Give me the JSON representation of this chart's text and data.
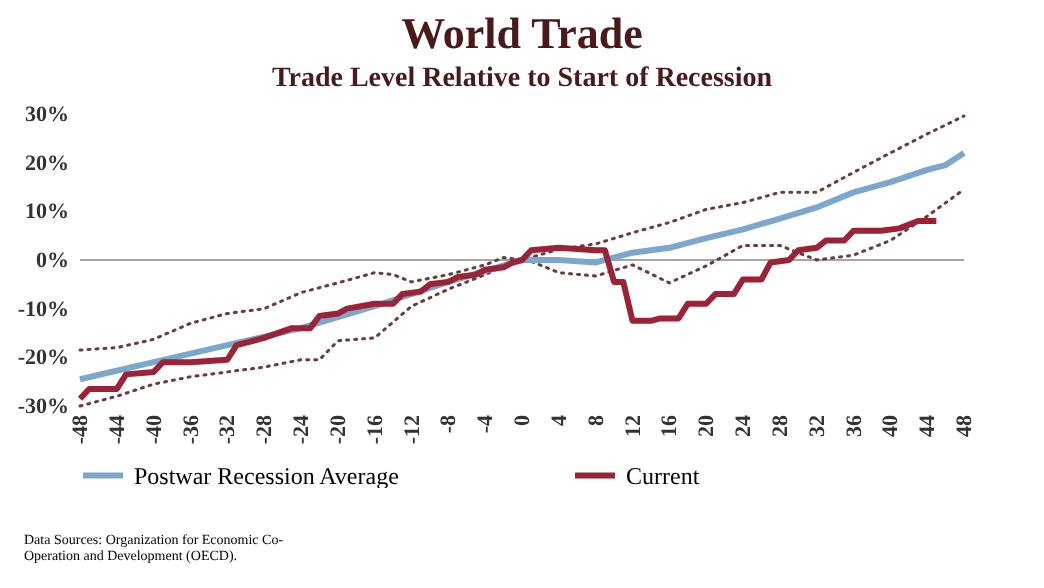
{
  "chart_data": {
    "type": "line",
    "title": "World Trade",
    "subtitle": "Trade Level Relative to Start of Recession",
    "annotations": [
      "Data Sources: Organization for Economic Co-Operation and Development (OECD)."
    ],
    "xlim": [
      -48,
      48
    ],
    "xticks": [
      -48,
      -44,
      -40,
      -36,
      -32,
      -28,
      -24,
      -20,
      -16,
      -12,
      -8,
      -4,
      0,
      4,
      8,
      12,
      16,
      20,
      24,
      28,
      32,
      36,
      40,
      44,
      48
    ],
    "ylim": [
      -30,
      30
    ],
    "yticks": [
      {
        "value": -30,
        "label": "-30%"
      },
      {
        "value": -20,
        "label": "-20%"
      },
      {
        "value": -10,
        "label": "-10%"
      },
      {
        "value": 0,
        "label": "0%"
      },
      {
        "value": 10,
        "label": "10%"
      },
      {
        "value": 20,
        "label": "20%"
      },
      {
        "value": 30,
        "label": "30%"
      }
    ],
    "grid": false,
    "legend": "bottom",
    "marker": "none",
    "ref_lines": [
      {
        "axis": "y",
        "value": 0,
        "color": "#a6a6a6"
      }
    ],
    "series": [
      {
        "color": "#6b3a3a",
        "line_style": "dotted",
        "x": [
          -48,
          -44,
          -40,
          -36,
          -32,
          -28,
          -24,
          -20,
          -16,
          -14,
          -12,
          -8,
          -4,
          -2,
          0,
          4,
          8,
          12,
          16,
          20,
          24,
          28,
          32,
          36,
          40,
          44,
          48
        ],
        "values": [
          -18.5,
          -18,
          -16.3,
          -13,
          -11,
          -10,
          -6.7,
          -4.7,
          -2.6,
          -3,
          -4.5,
          -3,
          -1,
          0.5,
          0,
          2.2,
          3.3,
          5.6,
          7.7,
          10.4,
          11.8,
          13.9,
          13.9,
          18,
          22,
          25.9,
          29.6
        ]
      },
      {
        "color": "#6b3a3a",
        "line_style": "dotted",
        "x": [
          -48,
          -44,
          -40,
          -36,
          -32,
          -28,
          -24,
          -22,
          -20,
          -16,
          -12,
          -8,
          -4,
          0,
          4,
          8,
          12,
          16,
          20,
          24,
          28,
          32,
          36,
          40,
          44,
          48
        ],
        "values": [
          -30,
          -28,
          -25.5,
          -24,
          -23,
          -22,
          -20.5,
          -20.5,
          -16.6,
          -16,
          -9.5,
          -6,
          -3,
          0.5,
          -2.6,
          -3.3,
          -1,
          -4.7,
          -1.2,
          3,
          3,
          0,
          1,
          4,
          9,
          14.5
        ]
      },
      {
        "name": "Postwar Recession Average",
        "color": "#7ba7cc",
        "x": [
          -48,
          -40,
          -32,
          -24,
          -16,
          -8,
          0,
          4,
          8,
          12,
          16,
          20,
          24,
          28,
          32,
          36,
          40,
          44,
          46,
          48
        ],
        "values": [
          -24.5,
          -21,
          -17.5,
          -14,
          -9.5,
          -4.5,
          0,
          0,
          -0.5,
          1.5,
          2.5,
          4.5,
          6.3,
          8.5,
          10.8,
          13.9,
          16,
          18.5,
          19.5,
          22
        ]
      },
      {
        "name": "Current",
        "color": "#9b2335",
        "x": [
          -48,
          -47,
          -44,
          -43,
          -40,
          -39,
          -36,
          -32,
          -31,
          -28,
          -25,
          -23,
          -22,
          -20,
          -19,
          -16,
          -14,
          -13,
          -11,
          -10,
          -8,
          -7,
          -5,
          -4,
          -2,
          -1,
          0,
          1,
          4,
          8,
          9,
          10,
          11,
          12,
          14,
          15,
          17,
          18,
          20,
          21,
          23,
          24,
          26,
          27,
          29,
          30,
          32,
          33,
          35,
          36,
          39,
          41,
          43,
          45
        ],
        "values": [
          -28.5,
          -26.5,
          -26.5,
          -23.5,
          -23,
          -21,
          -21,
          -20.5,
          -17.5,
          -16,
          -14,
          -14,
          -11.5,
          -11,
          -10,
          -9,
          -9,
          -7,
          -6.5,
          -5,
          -4.5,
          -3.5,
          -3,
          -2,
          -1.5,
          -0.5,
          0,
          2,
          2.5,
          2,
          2,
          -4.5,
          -4.5,
          -12.5,
          -12.5,
          -12,
          -12,
          -9,
          -9,
          -7,
          -7,
          -4,
          -4,
          -0.5,
          0,
          2,
          2.5,
          4,
          4,
          6,
          6,
          6.5,
          8,
          8
        ]
      }
    ]
  }
}
